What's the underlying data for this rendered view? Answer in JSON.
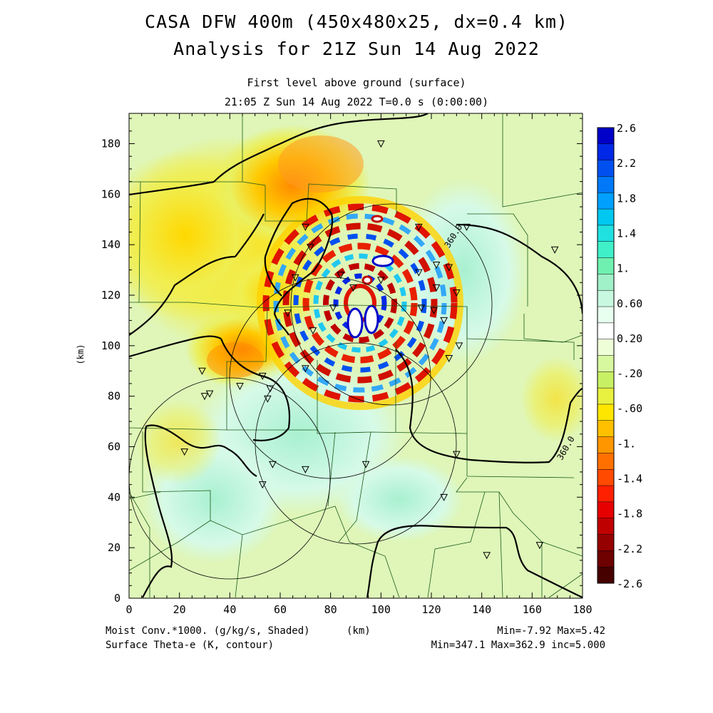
{
  "title": {
    "line1": "CASA DFW 400m (450x480x25, dx=0.4 km)",
    "line2": "Analysis for 21Z Sun 14 Aug 2022"
  },
  "subtitle": {
    "line1": "First level above ground (surface)",
    "line2": "21:05 Z Sun 14 Aug 2022   T=0.0 s (0:00:00)"
  },
  "axes": {
    "x_ticks": [
      "0",
      "20",
      "40",
      "60",
      "80",
      "100",
      "120",
      "140",
      "160",
      "180"
    ],
    "y_ticks": [
      "0",
      "20",
      "40",
      "60",
      "80",
      "100",
      "120",
      "140",
      "160",
      "180"
    ],
    "x_unit": "(km)",
    "y_unit": "(km)",
    "xlim": [
      0,
      180
    ],
    "ylim": [
      0,
      192
    ]
  },
  "colorbar": {
    "labels": [
      "2.6",
      "2.2",
      "1.8",
      "1.4",
      "1.",
      "0.60",
      "0.20",
      "-.20",
      "-.60",
      "-1.",
      "-1.4",
      "-1.8",
      "-2.2",
      "-2.6"
    ],
    "colors": [
      "#0000c8",
      "#0028e6",
      "#0050f0",
      "#0078f8",
      "#00a0ff",
      "#00c8f0",
      "#20e0e0",
      "#40f0c8",
      "#70f0b0",
      "#a0f0c8",
      "#c8f8e0",
      "#e8fff0",
      "#ffffff",
      "#eeffd8",
      "#d8f8a0",
      "#c8f064",
      "#e8f040",
      "#ffe600",
      "#ffc000",
      "#ff9600",
      "#ff7000",
      "#ff4a00",
      "#ff2000",
      "#e60000",
      "#c00000",
      "#960000",
      "#6e0000",
      "#460000"
    ]
  },
  "contour_labels": [
    "360.0",
    "360.0"
  ],
  "footer": {
    "left1": "Moist Conv.*1000. (g/kg/s, Shaded)",
    "left2": "Surface Theta-e (K, contour)",
    "center": "(km)",
    "right1": "Min=-7.92 Max=5.42",
    "right2": "Min=347.1 Max=362.9 inc=5.000"
  },
  "chart_data": {
    "type": "heatmap",
    "field": "Moist Conv.*1000. (g/kg/s, Shaded)",
    "contour_field": "Surface Theta-e (K, contour)",
    "shaded_min": -7.92,
    "shaded_max": 5.42,
    "contour_min": 347.1,
    "contour_max": 362.9,
    "contour_inc": 5.0,
    "radar_rings": [
      {
        "center_x_km": 50,
        "center_y_km": 50,
        "radius_km": 40
      },
      {
        "center_x_km": 82,
        "center_y_km": 88,
        "radius_km": 40
      },
      {
        "center_x_km": 105,
        "center_y_km": 60,
        "radius_km": 40
      },
      {
        "center_x_km": 104,
        "center_y_km": 117,
        "radius_km": 40
      }
    ],
    "stations_km": [
      [
        100,
        180
      ],
      [
        70,
        147
      ],
      [
        72,
        139
      ],
      [
        84,
        128
      ],
      [
        66,
        127
      ],
      [
        89,
        123
      ],
      [
        100,
        126
      ],
      [
        115,
        147
      ],
      [
        122,
        132
      ],
      [
        115,
        129
      ],
      [
        127,
        131
      ],
      [
        122,
        123
      ],
      [
        121,
        114
      ],
      [
        130,
        121
      ],
      [
        63,
        113
      ],
      [
        73,
        106
      ],
      [
        81,
        115
      ],
      [
        116,
        115
      ],
      [
        125,
        110
      ],
      [
        131,
        100
      ],
      [
        127,
        95
      ],
      [
        70,
        91
      ],
      [
        53,
        88
      ],
      [
        44,
        84
      ],
      [
        56,
        83
      ],
      [
        32,
        81
      ],
      [
        30,
        80
      ],
      [
        29,
        90
      ],
      [
        55,
        79
      ],
      [
        22,
        58
      ],
      [
        57,
        53
      ],
      [
        70,
        51
      ],
      [
        94,
        53
      ],
      [
        130,
        57
      ],
      [
        53,
        45
      ],
      [
        125,
        40
      ],
      [
        169,
        138
      ],
      [
        142,
        17
      ],
      [
        163,
        21
      ],
      [
        134,
        147
      ]
    ]
  }
}
